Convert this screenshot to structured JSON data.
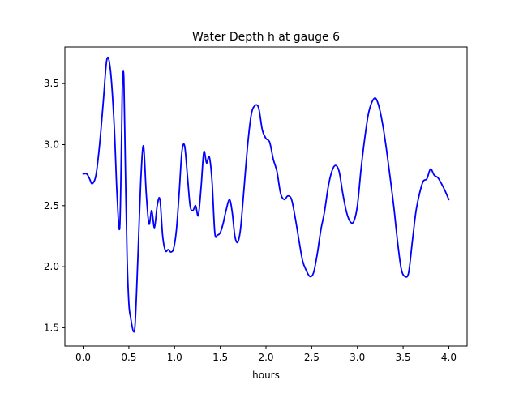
{
  "chart_data": {
    "type": "line",
    "title": "Water Depth h at gauge 6",
    "xlabel": "hours",
    "ylabel": "",
    "xlim": [
      -0.2,
      4.2
    ],
    "ylim": [
      1.35,
      3.8
    ],
    "xticks": [
      0.0,
      0.5,
      1.0,
      1.5,
      2.0,
      2.5,
      3.0,
      3.5,
      4.0
    ],
    "xtick_labels": [
      "0.0",
      "0.5",
      "1.0",
      "1.5",
      "2.0",
      "2.5",
      "3.0",
      "3.5",
      "4.0"
    ],
    "yticks": [
      1.5,
      2.0,
      2.5,
      3.0,
      3.5
    ],
    "ytick_labels": [
      "1.5",
      "2.0",
      "2.5",
      "3.0",
      "3.5"
    ],
    "grid": false,
    "colors": {
      "line": "#0000ff",
      "axes": "#000000",
      "background": "#ffffff"
    },
    "series": [
      {
        "x": [
          0.0,
          0.04,
          0.07,
          0.1,
          0.14,
          0.18,
          0.22,
          0.26,
          0.3,
          0.34,
          0.37,
          0.4,
          0.42,
          0.43,
          0.445,
          0.46,
          0.48,
          0.5,
          0.52,
          0.55,
          0.57,
          0.6,
          0.63,
          0.66,
          0.69,
          0.72,
          0.75,
          0.78,
          0.81,
          0.84,
          0.87,
          0.9,
          0.93,
          0.96,
          0.99,
          1.02,
          1.05,
          1.08,
          1.11,
          1.14,
          1.17,
          1.2,
          1.23,
          1.26,
          1.29,
          1.32,
          1.35,
          1.38,
          1.41,
          1.44,
          1.47,
          1.5,
          1.53,
          1.56,
          1.6,
          1.63,
          1.66,
          1.69,
          1.72,
          1.75,
          1.8,
          1.84,
          1.88,
          1.92,
          1.96,
          2.0,
          2.04,
          2.08,
          2.12,
          2.16,
          2.2,
          2.24,
          2.28,
          2.32,
          2.36,
          2.4,
          2.44,
          2.48,
          2.52,
          2.56,
          2.6,
          2.64,
          2.68,
          2.72,
          2.76,
          2.8,
          2.84,
          2.88,
          2.92,
          2.96,
          3.0,
          3.04,
          3.08,
          3.12,
          3.16,
          3.2,
          3.24,
          3.28,
          3.32,
          3.36,
          3.4,
          3.44,
          3.48,
          3.52,
          3.56,
          3.6,
          3.64,
          3.68,
          3.72,
          3.76,
          3.8,
          3.84,
          3.88,
          3.92,
          3.96,
          4.0
        ],
        "y": [
          2.76,
          2.76,
          2.72,
          2.68,
          2.75,
          3.0,
          3.35,
          3.7,
          3.6,
          3.15,
          2.6,
          2.32,
          3.05,
          3.5,
          3.55,
          2.9,
          2.1,
          1.7,
          1.58,
          1.47,
          1.55,
          2.1,
          2.7,
          2.99,
          2.6,
          2.35,
          2.46,
          2.32,
          2.5,
          2.55,
          2.25,
          2.13,
          2.14,
          2.12,
          2.15,
          2.3,
          2.6,
          2.94,
          2.99,
          2.75,
          2.5,
          2.46,
          2.5,
          2.42,
          2.65,
          2.94,
          2.85,
          2.9,
          2.7,
          2.28,
          2.26,
          2.28,
          2.35,
          2.45,
          2.55,
          2.45,
          2.25,
          2.2,
          2.3,
          2.55,
          3.0,
          3.25,
          3.32,
          3.3,
          3.12,
          3.05,
          3.02,
          2.88,
          2.78,
          2.6,
          2.55,
          2.58,
          2.55,
          2.4,
          2.22,
          2.05,
          1.97,
          1.92,
          1.95,
          2.1,
          2.3,
          2.45,
          2.65,
          2.78,
          2.83,
          2.78,
          2.6,
          2.45,
          2.37,
          2.37,
          2.5,
          2.8,
          3.05,
          3.25,
          3.35,
          3.38,
          3.3,
          3.15,
          2.95,
          2.72,
          2.48,
          2.2,
          1.98,
          1.92,
          1.95,
          2.2,
          2.45,
          2.6,
          2.7,
          2.72,
          2.8,
          2.75,
          2.73,
          2.68,
          2.62,
          2.55
        ]
      }
    ]
  }
}
